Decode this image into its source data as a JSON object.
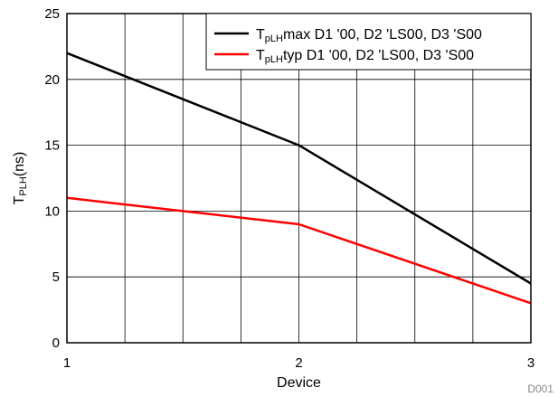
{
  "chart_data": {
    "type": "line",
    "x": [
      1,
      2,
      3
    ],
    "xlabel": "Device",
    "ylabel": {
      "main": "T",
      "sub": "PLH",
      "tail": "(ns)"
    },
    "xlim": [
      1,
      3
    ],
    "ylim": [
      0,
      25
    ],
    "x_ticks": [
      1,
      2,
      3
    ],
    "x_tick_labels": [
      "1",
      "2",
      "3"
    ],
    "y_ticks": [
      0,
      5,
      10,
      15,
      20,
      25
    ],
    "y_tick_labels": [
      "0",
      "5",
      "10",
      "15",
      "20",
      "25"
    ],
    "grid": true,
    "legend_position": "top-right",
    "series": [
      {
        "name": "TpLHmax D1 '00, D2 'LS00, D3 'S00",
        "legend_main": "T",
        "legend_sub": "pLH",
        "legend_rest": "max D1 '00, D2 'LS00, D3 'S00",
        "color": "#000000",
        "values": [
          22,
          15,
          4.5
        ]
      },
      {
        "name": "TpLHtyp D1 '00, D2 'LS00, D3 'S00",
        "legend_main": "T",
        "legend_sub": "pLH",
        "legend_rest": "typ D1 '00, D2 'LS00, D3 'S00",
        "color": "#ff0000",
        "values": [
          11,
          9,
          3
        ]
      }
    ],
    "footnote": "D001"
  }
}
